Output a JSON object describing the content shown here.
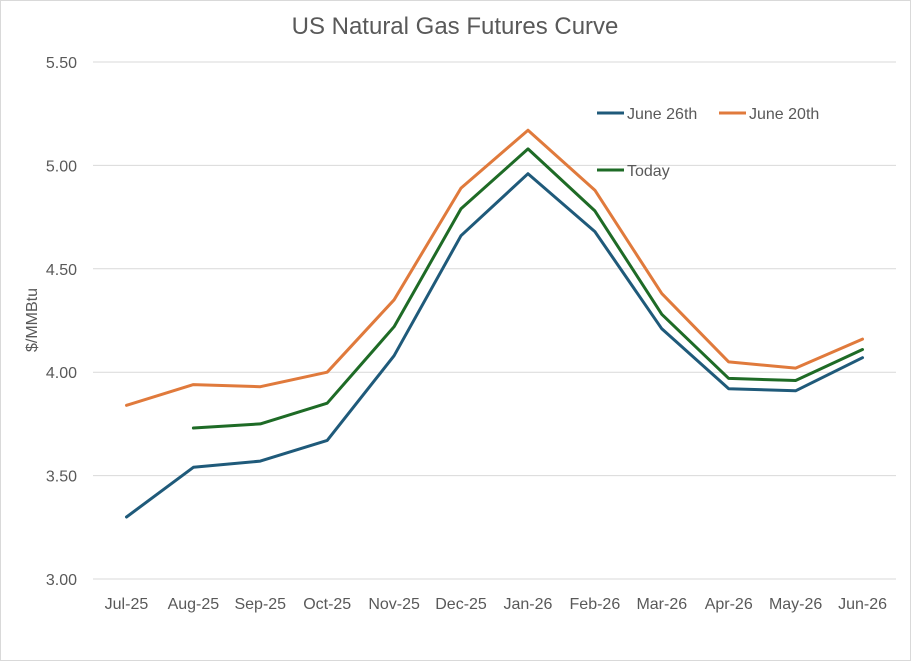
{
  "chart_data": {
    "type": "line",
    "title": "US Natural Gas Futures Curve",
    "xlabel": "",
    "ylabel": "$/MMBtu",
    "ylim": [
      3.0,
      5.5
    ],
    "yticks": [
      "3.00",
      "3.50",
      "4.00",
      "4.50",
      "5.00",
      "5.50"
    ],
    "grid": true,
    "legend_position": "top-right",
    "categories": [
      "Jul-25",
      "Aug-25",
      "Sep-25",
      "Oct-25",
      "Nov-25",
      "Dec-25",
      "Jan-26",
      "Feb-26",
      "Mar-26",
      "Apr-26",
      "May-26",
      "Jun-26"
    ],
    "series": [
      {
        "name": "June 26th",
        "color": "#1f5a7a",
        "values": [
          3.3,
          3.54,
          3.57,
          3.67,
          4.08,
          4.66,
          4.96,
          4.68,
          4.21,
          3.92,
          3.91,
          4.07
        ]
      },
      {
        "name": "June 20th",
        "color": "#e07a3c",
        "values": [
          3.84,
          3.94,
          3.93,
          4.0,
          4.35,
          4.89,
          5.17,
          4.88,
          4.38,
          4.05,
          4.02,
          4.16
        ]
      },
      {
        "name": "Today",
        "color": "#1e6b26",
        "values": [
          null,
          3.73,
          3.75,
          3.85,
          4.22,
          4.79,
          5.08,
          4.78,
          4.28,
          3.97,
          3.96,
          4.11
        ]
      }
    ]
  }
}
